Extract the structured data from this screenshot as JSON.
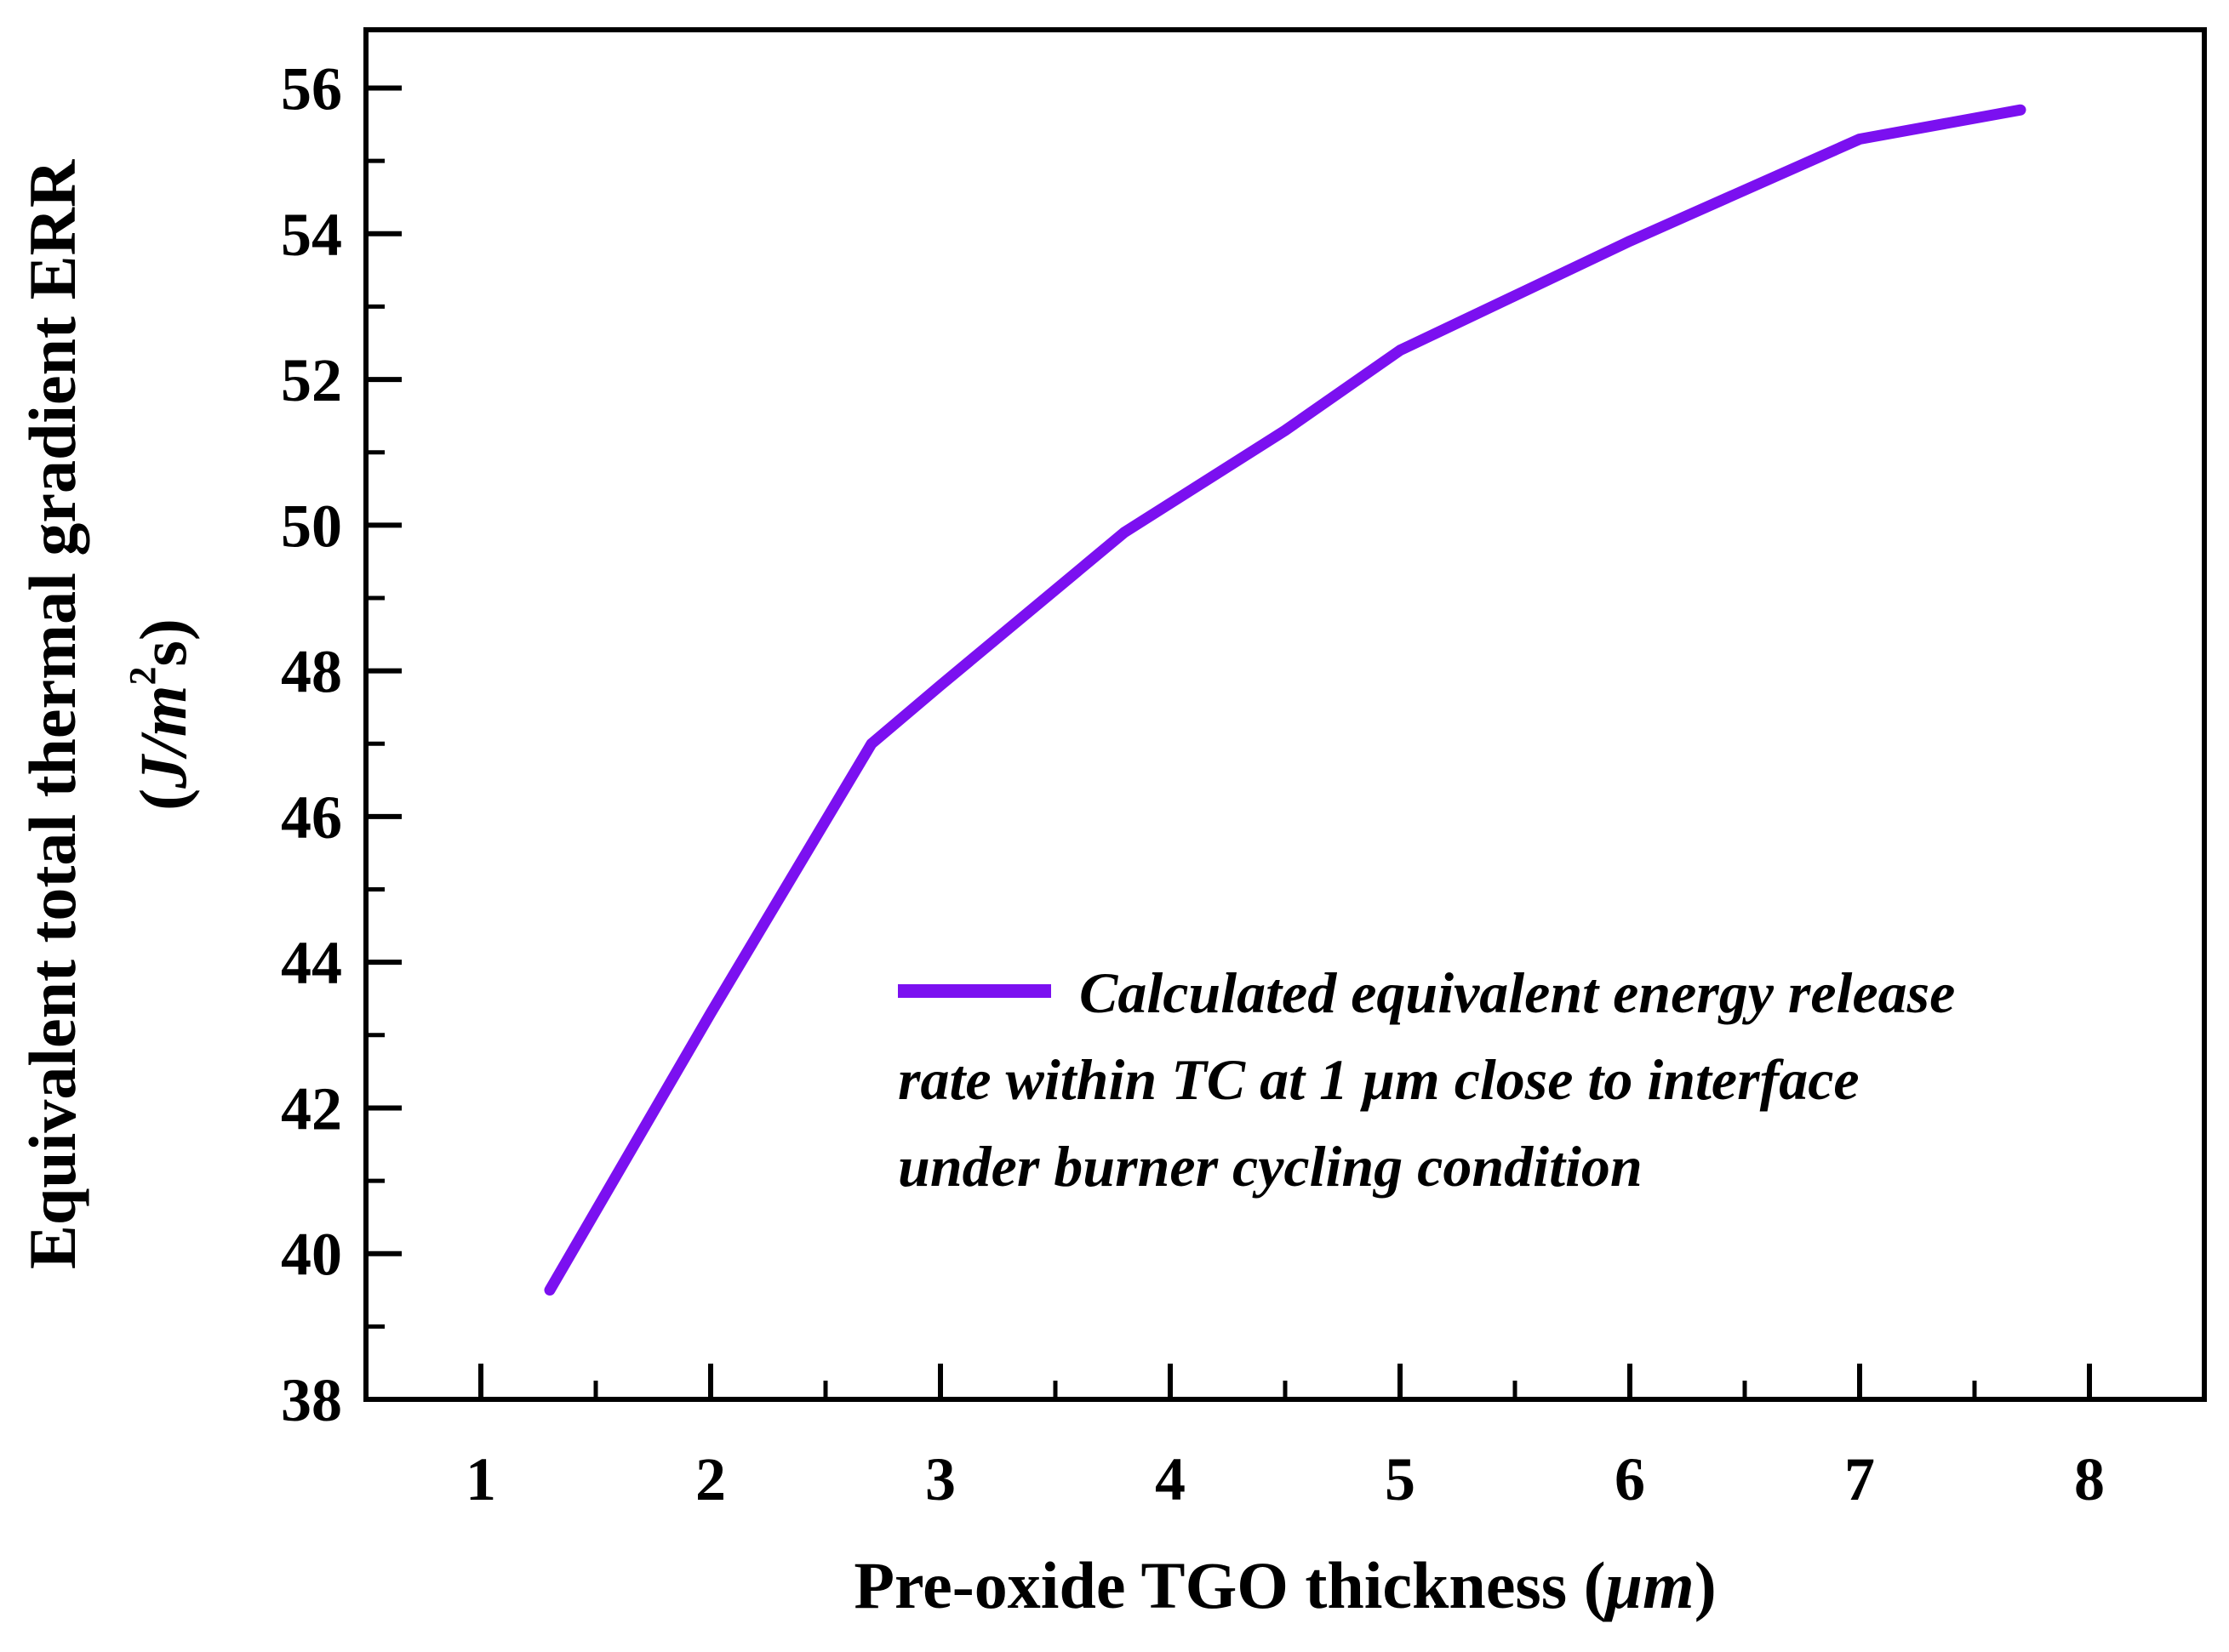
{
  "chart_data": {
    "type": "line",
    "title": "",
    "xlabel": "Pre-oxide TGO thickness (μm)",
    "xlabel_main": "Pre-oxide TGO thickness (",
    "xlabel_unit": "μm",
    "xlabel_close": ")",
    "ylabel": "Equivalent total thermal gradient ERR (J/m²s)",
    "ylabel_line1": "Equivalent total thermal gradient ERR",
    "ylabel_line2_open": "(",
    "ylabel_line2_unit": "J/m",
    "ylabel_line2_sup": "2",
    "ylabel_line2_rest": "s)",
    "xlim": [
      0.5,
      8.5
    ],
    "ylim": [
      38,
      56.8
    ],
    "x_ticks": [
      1,
      2,
      3,
      4,
      5,
      6,
      7,
      8
    ],
    "y_ticks": [
      38,
      40,
      42,
      44,
      46,
      48,
      50,
      52,
      54,
      56
    ],
    "grid": false,
    "legend_position": "center-right",
    "series": [
      {
        "name": "Calculated equivalent energy release rate within TC at 1 μm close to interface under burner cycling condition",
        "legend_lines": [
          "Calculated equivalent energy release",
          "rate within TC  at 1 μm close to interface",
          "under burner cycling condition"
        ],
        "color": "#7b10f0",
        "x": [
          1.3,
          2.0,
          2.7,
          3.0,
          3.8,
          4.5,
          5.0,
          6.0,
          7.0,
          7.7
        ],
        "y": [
          39.5,
          43.3,
          47.0,
          47.8,
          49.9,
          51.3,
          52.4,
          53.9,
          55.3,
          55.7
        ]
      }
    ]
  }
}
